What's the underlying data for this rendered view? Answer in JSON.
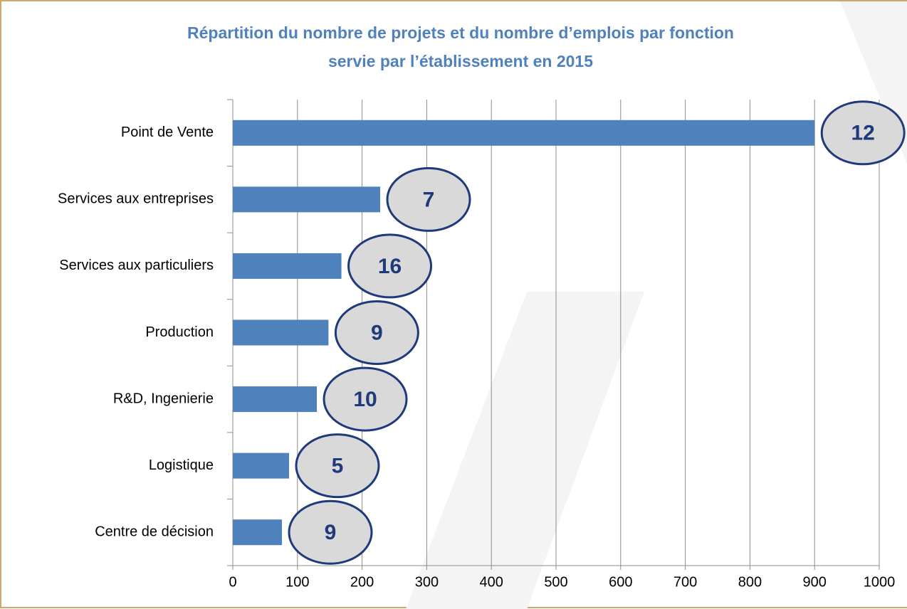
{
  "chart_data": {
    "type": "bar",
    "orientation": "horizontal",
    "title": [
      "Répartition du nombre de projets et du nombre d’emplois par fonction",
      "servie par l’établissement en 2015"
    ],
    "categories": [
      "Point de Vente",
      "Services aux entreprises",
      "Services aux particuliers",
      "Production",
      "R&D, Ingenierie",
      "Logistique",
      "Centre de décision"
    ],
    "values": [
      900,
      228,
      168,
      148,
      130,
      87,
      76
    ],
    "projects": [
      12,
      7,
      16,
      9,
      10,
      5,
      9
    ],
    "color": "#4f81bd",
    "xlim": [
      0,
      1000
    ],
    "xticks": [
      0,
      100,
      200,
      300,
      400,
      500,
      600,
      700,
      800,
      900,
      1000
    ],
    "grid": true
  }
}
